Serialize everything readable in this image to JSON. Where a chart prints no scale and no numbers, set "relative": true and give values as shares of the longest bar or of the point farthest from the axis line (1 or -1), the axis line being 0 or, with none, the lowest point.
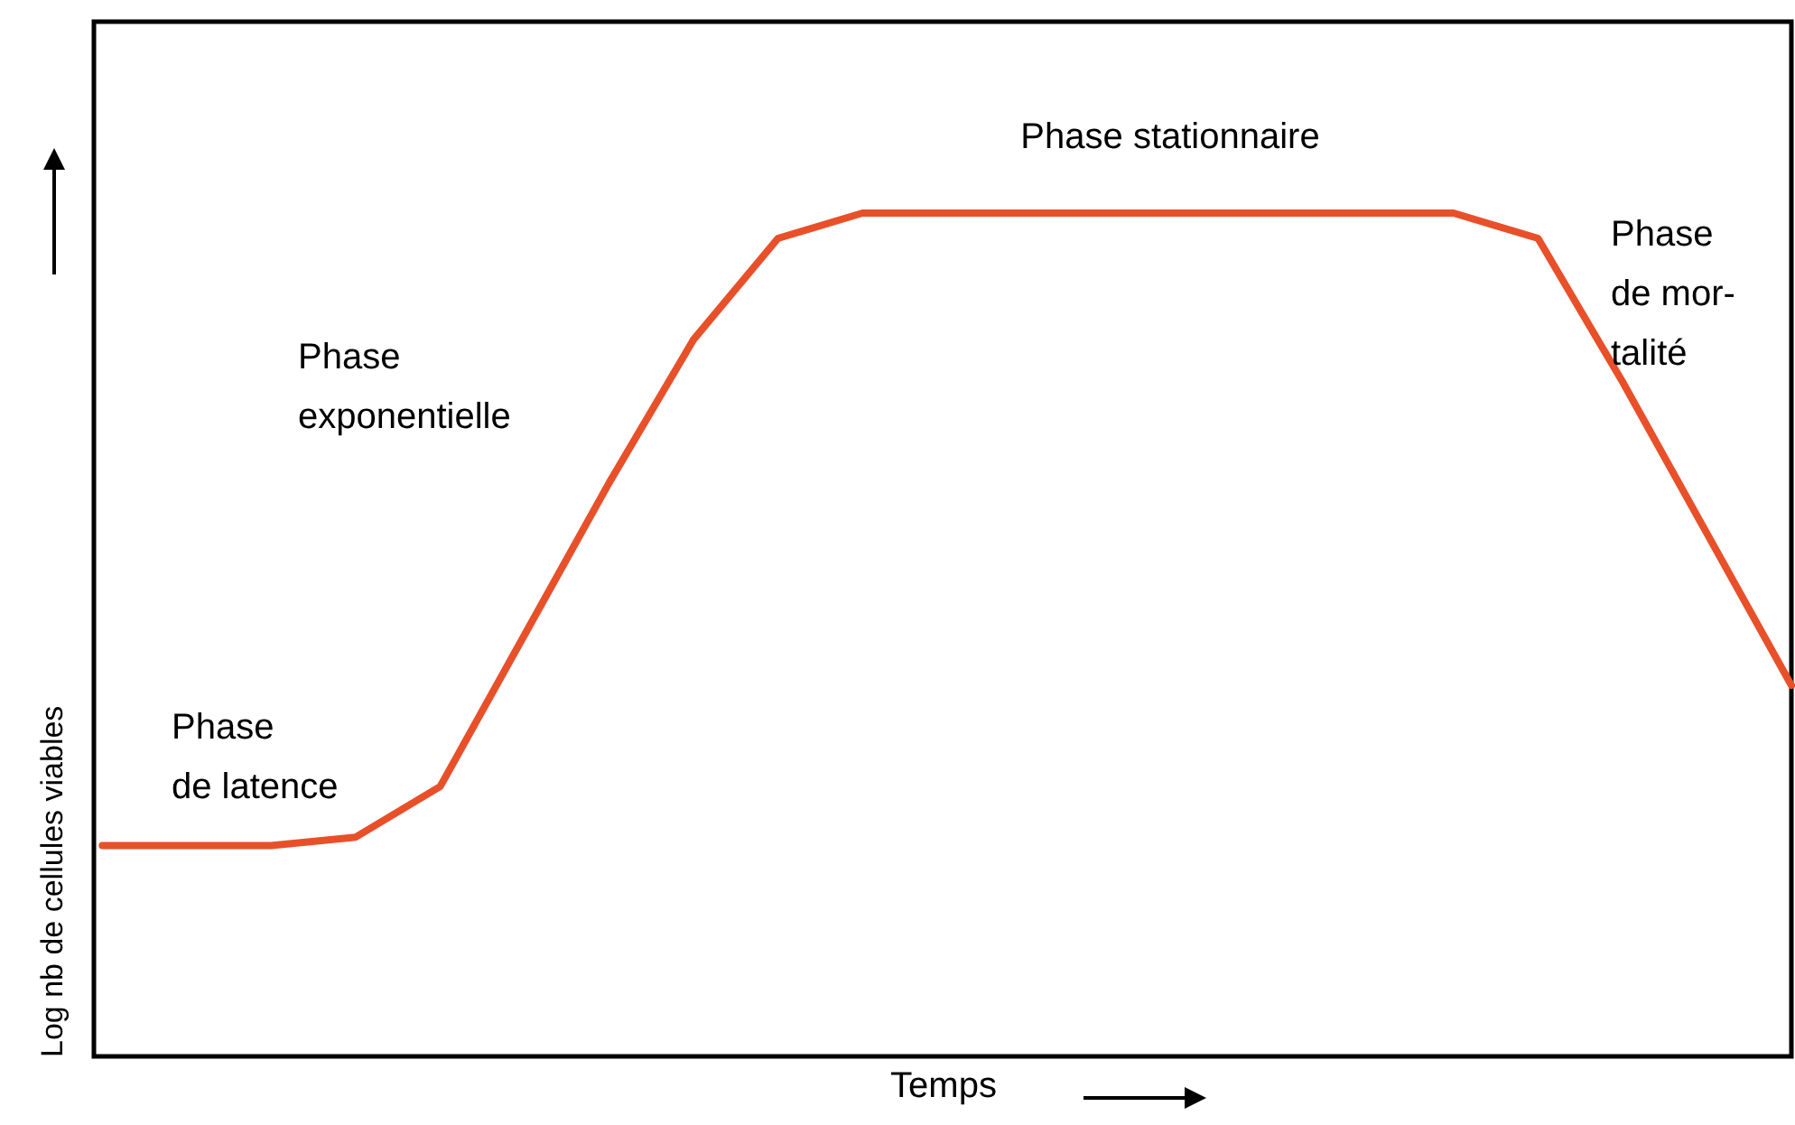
{
  "chart_data": {
    "type": "line",
    "relative": true,
    "xlabel": "Temps",
    "ylabel": "Log nb de cellules viables",
    "categories": [
      null,
      null,
      null,
      null,
      null,
      null,
      null,
      null,
      null,
      null,
      null,
      null,
      null,
      null,
      null,
      null,
      null,
      null,
      null,
      null,
      null
    ],
    "series": [
      {
        "color": "#e8502a",
        "values": [
          0.25,
          0.25,
          0.25,
          0.26,
          0.32,
          0.5,
          0.68,
          0.85,
          0.97,
          1,
          1,
          1,
          1,
          1,
          1,
          1,
          1,
          0.97,
          0.8,
          0.62,
          0.44
        ]
      }
    ],
    "annotations": [
      "Phase stationnaire",
      "Phase\nexponentielle",
      "Phase\nde latence",
      "Phase\nde mor-\ntalité"
    ],
    "marker": "none",
    "line_style": "solid"
  }
}
